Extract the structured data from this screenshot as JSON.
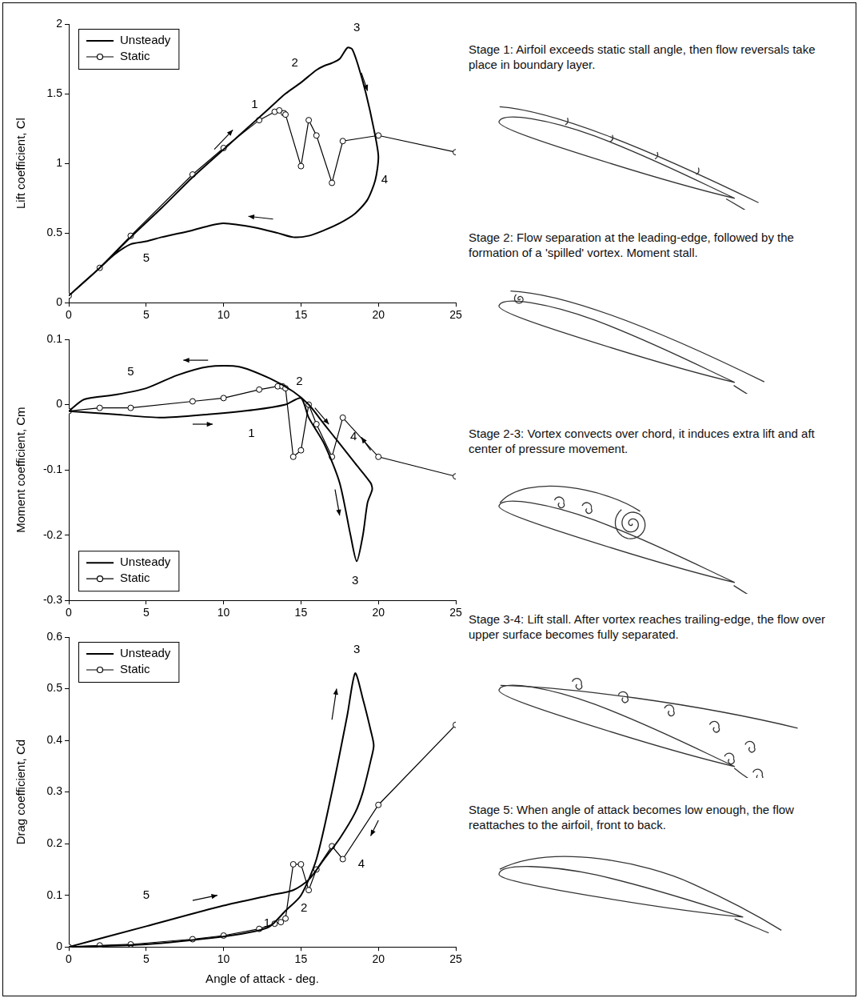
{
  "chart_data": [
    {
      "type": "line",
      "y_label": "Lift coefficient, Cl",
      "xlim": [
        0,
        25
      ],
      "xticks": [
        0,
        5,
        10,
        15,
        20,
        25
      ],
      "ylim": [
        0,
        2
      ],
      "yticks": [
        0,
        0.5,
        1,
        1.5,
        2
      ],
      "grid": false,
      "legend": "upper left",
      "series": [
        {
          "name": "Unsteady",
          "color": "#000000",
          "marker": "none",
          "line_style": "solid",
          "x": [
            0,
            2,
            4,
            6,
            8,
            10,
            12,
            13,
            14,
            15,
            16,
            16.5,
            17,
            17.5,
            18,
            18.3,
            18.7,
            19.2,
            19.7,
            20,
            19.8,
            19.3,
            18.5,
            17.5,
            16.5,
            15.5,
            14.5,
            13.5,
            12,
            10,
            9,
            8,
            6,
            5,
            4,
            3,
            2,
            1,
            0
          ],
          "values": [
            0.05,
            0.25,
            0.47,
            0.68,
            0.9,
            1.1,
            1.3,
            1.4,
            1.5,
            1.58,
            1.67,
            1.7,
            1.72,
            1.75,
            1.83,
            1.82,
            1.7,
            1.5,
            1.25,
            1.05,
            0.88,
            0.74,
            0.64,
            0.57,
            0.52,
            0.48,
            0.47,
            0.5,
            0.54,
            0.57,
            0.55,
            0.52,
            0.47,
            0.44,
            0.42,
            0.35,
            0.25,
            0.15,
            0.05
          ]
        },
        {
          "name": "Static",
          "color": "#000000",
          "marker": "circle",
          "line_style": "solid",
          "x": [
            0,
            2,
            4,
            8,
            10,
            12.3,
            13.3,
            13.6,
            13.9,
            14,
            15,
            15.5,
            16,
            17,
            17.7,
            20,
            25
          ],
          "values": [
            0.05,
            0.25,
            0.48,
            0.92,
            1.11,
            1.31,
            1.37,
            1.38,
            1.36,
            1.35,
            0.98,
            1.31,
            1.2,
            0.86,
            1.16,
            1.2,
            1.08
          ]
        }
      ],
      "annotations": [
        {
          "text": "1",
          "x": 12,
          "y": 1.42
        },
        {
          "text": "2",
          "x": 14.6,
          "y": 1.72
        },
        {
          "text": "3",
          "x": 18.6,
          "y": 1.97
        },
        {
          "text": "4",
          "x": 20.4,
          "y": 0.88
        },
        {
          "text": "5",
          "x": 5,
          "y": 0.32
        }
      ],
      "arrows": [
        {
          "x": [
            9.4,
            10.6
          ],
          "y": [
            1.1,
            1.24
          ]
        },
        {
          "x": [
            18.9,
            19.3
          ],
          "y": [
            1.65,
            1.52
          ]
        },
        {
          "x": [
            13.2,
            11.6
          ],
          "y": [
            0.6,
            0.62
          ]
        }
      ]
    },
    {
      "type": "line",
      "y_label": "Moment coefficient, Cm",
      "xlim": [
        0,
        25
      ],
      "xticks": [
        0,
        5,
        10,
        15,
        20,
        25
      ],
      "ylim": [
        -0.3,
        0.1
      ],
      "yticks": [
        -0.3,
        -0.2,
        -0.1,
        0,
        0.1
      ],
      "grid": false,
      "legend": "lower left",
      "series": [
        {
          "name": "Unsteady",
          "color": "#000000",
          "marker": "none",
          "line_style": "solid",
          "x": [
            0,
            3,
            6,
            9,
            12,
            14,
            15,
            15.5,
            16.5,
            17.5,
            18.2,
            18.6,
            19,
            19.3,
            19.6,
            19.5,
            18.5,
            17.5,
            16.5,
            15.5,
            14.5,
            13,
            11,
            9,
            7,
            5,
            3,
            1,
            0
          ],
          "values": [
            -0.01,
            -0.015,
            -0.02,
            -0.015,
            -0.008,
            0,
            0.01,
            -0.02,
            -0.06,
            -0.12,
            -0.2,
            -0.24,
            -0.2,
            -0.15,
            -0.13,
            -0.12,
            -0.09,
            -0.06,
            -0.03,
            0,
            0.02,
            0.04,
            0.058,
            0.058,
            0.045,
            0.025,
            0.015,
            0.008,
            -0.01
          ]
        },
        {
          "name": "Static",
          "color": "#000000",
          "marker": "circle",
          "line_style": "solid",
          "x": [
            0,
            2,
            4,
            8,
            10,
            12.3,
            13.5,
            13.8,
            14,
            14.5,
            15,
            15.5,
            16,
            17,
            17.7,
            20,
            25
          ],
          "values": [
            -0.01,
            -0.005,
            -0.005,
            0.005,
            0.01,
            0.023,
            0.028,
            0.028,
            0.025,
            -0.08,
            -0.07,
            0,
            -0.03,
            -0.08,
            -0.02,
            -0.08,
            -0.11
          ]
        }
      ],
      "annotations": [
        {
          "text": "1",
          "x": 11.8,
          "y": -0.045
        },
        {
          "text": "2",
          "x": 14.9,
          "y": 0.035
        },
        {
          "text": "3",
          "x": 18.5,
          "y": -0.27
        },
        {
          "text": "4",
          "x": 18.4,
          "y": -0.05
        },
        {
          "text": "5",
          "x": 4,
          "y": 0.05
        }
      ],
      "arrows": [
        {
          "x": [
            9,
            7.4
          ],
          "y": [
            0.068,
            0.068
          ]
        },
        {
          "x": [
            8,
            9.3
          ],
          "y": [
            -0.03,
            -0.03
          ]
        },
        {
          "x": [
            15.9,
            16.8
          ],
          "y": [
            -0.005,
            -0.03
          ]
        },
        {
          "x": [
            19.5,
            18.9
          ],
          "y": [
            -0.07,
            -0.05
          ]
        },
        {
          "x": [
            17.2,
            17.5
          ],
          "y": [
            -0.13,
            -0.17
          ]
        }
      ]
    },
    {
      "type": "line",
      "x_label": "Angle of attack - deg.",
      "y_label": "Drag coefficient, Cd",
      "xlim": [
        0,
        25
      ],
      "xticks": [
        0,
        5,
        10,
        15,
        20,
        25
      ],
      "ylim": [
        0,
        0.6
      ],
      "yticks": [
        0,
        0.1,
        0.2,
        0.3,
        0.4,
        0.5,
        0.6
      ],
      "grid": false,
      "legend": "upper left",
      "series": [
        {
          "name": "Unsteady",
          "color": "#000000",
          "marker": "none",
          "line_style": "solid",
          "x": [
            0,
            5,
            10,
            12,
            13,
            14,
            15,
            16,
            17,
            18,
            18.5,
            19,
            19.5,
            19.7,
            19.5,
            19,
            18.5,
            17.5,
            16.5,
            15.5,
            14.5,
            13,
            10,
            5,
            0
          ],
          "values": [
            0,
            0.005,
            0.02,
            0.03,
            0.04,
            0.07,
            0.1,
            0.17,
            0.3,
            0.45,
            0.53,
            0.48,
            0.42,
            0.39,
            0.36,
            0.3,
            0.26,
            0.21,
            0.17,
            0.13,
            0.11,
            0.1,
            0.08,
            0.04,
            0
          ]
        },
        {
          "name": "Static",
          "color": "#000000",
          "marker": "circle",
          "line_style": "solid",
          "x": [
            0,
            2,
            4,
            8,
            10,
            12.3,
            13.3,
            13.7,
            14,
            14.5,
            15,
            15.5,
            16,
            17,
            17.7,
            20,
            25
          ],
          "values": [
            0,
            0.003,
            0.005,
            0.015,
            0.022,
            0.035,
            0.045,
            0.048,
            0.055,
            0.16,
            0.16,
            0.11,
            0.15,
            0.195,
            0.17,
            0.275,
            0.43
          ]
        }
      ],
      "annotations": [
        {
          "text": "1",
          "x": 12.8,
          "y": 0.045
        },
        {
          "text": "2",
          "x": 15.2,
          "y": 0.075
        },
        {
          "text": "3",
          "x": 18.6,
          "y": 0.575
        },
        {
          "text": "4",
          "x": 18.9,
          "y": 0.16
        },
        {
          "text": "5",
          "x": 5,
          "y": 0.1
        }
      ],
      "arrows": [
        {
          "x": [
            8,
            9.6
          ],
          "y": [
            0.09,
            0.1
          ]
        },
        {
          "x": [
            17,
            17.3
          ],
          "y": [
            0.44,
            0.5
          ]
        },
        {
          "x": [
            20,
            19.5
          ],
          "y": [
            0.245,
            0.215
          ]
        }
      ]
    }
  ],
  "stages": [
    {
      "text": "Stage 1: Airfoil exceeds static stall angle, then flow reversals take place in boundary layer."
    },
    {
      "text": "Stage 2: Flow separation at the leading-edge, followed by the formation of a 'spilled' vortex. Moment stall."
    },
    {
      "text": "Stage 2-3: Vortex convects over chord, it induces extra lift and aft center of pressure movement."
    },
    {
      "text": "Stage 3-4: Lift stall. After vortex reaches trailing-edge, the flow over upper surface becomes fully separated."
    },
    {
      "text": "Stage 5: When angle of attack becomes low enough, the flow reattaches to the airfoil, front to back."
    }
  ]
}
